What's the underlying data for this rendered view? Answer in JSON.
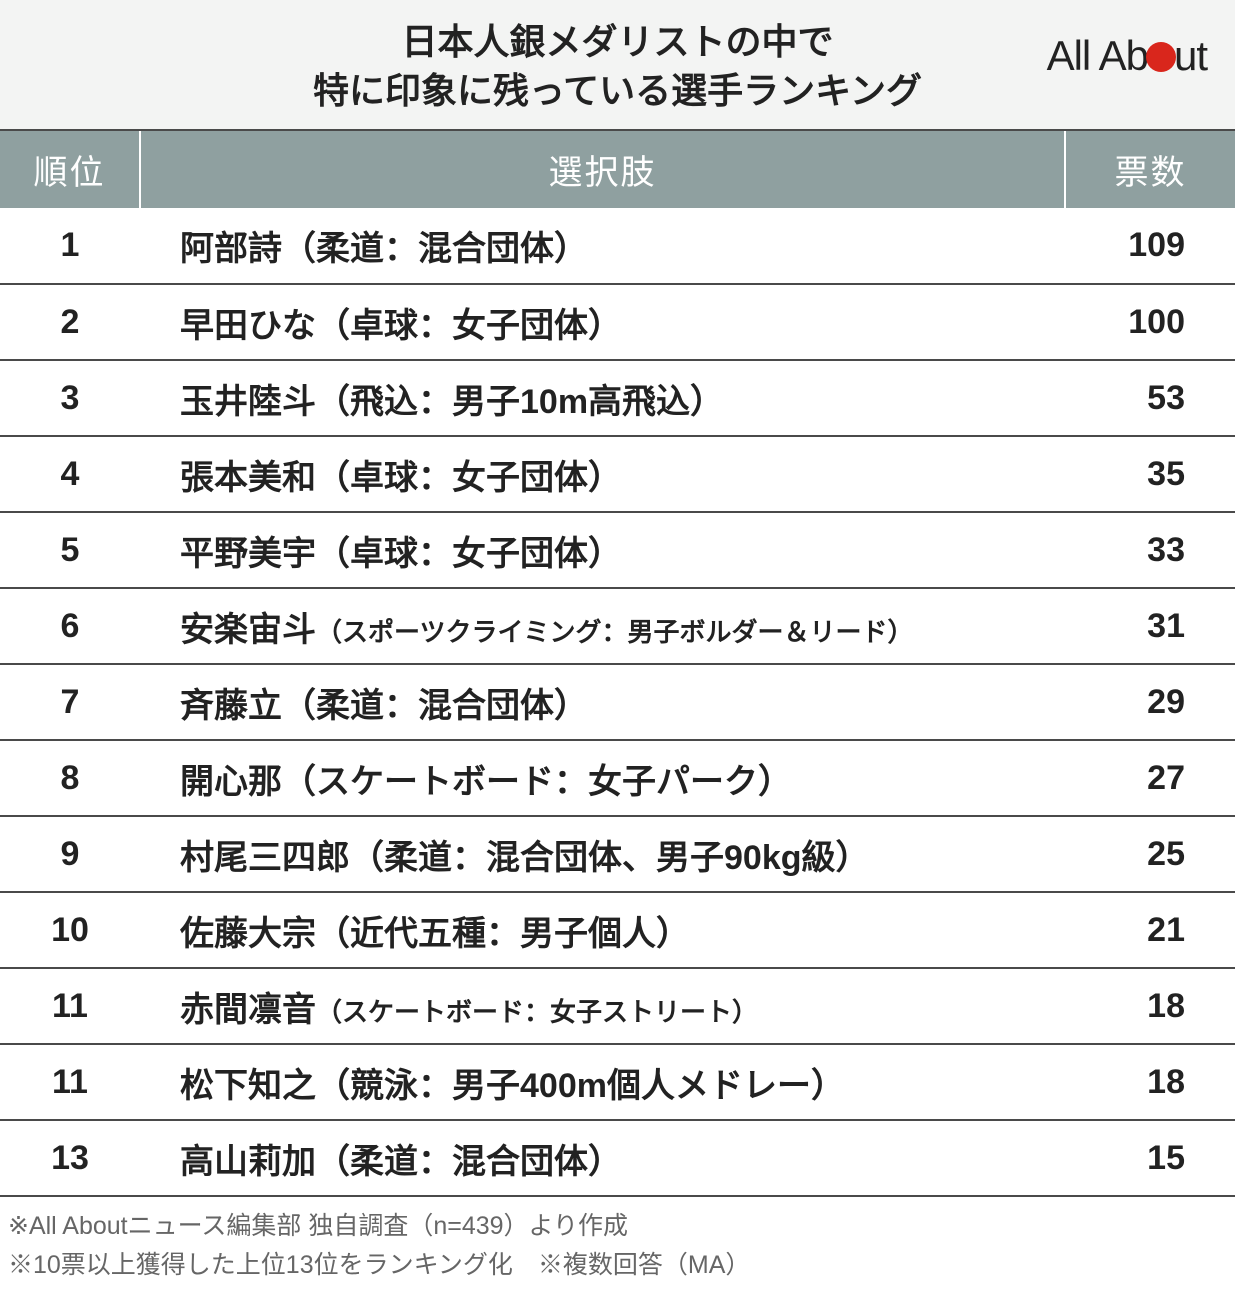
{
  "title_line1": "日本人銀メダリストの中で",
  "title_line2": "特に印象に残っている選手ランキング",
  "logo_part1": "All Ab",
  "logo_part3": "ut",
  "table": {
    "header_background": "#8fa0a0",
    "header_text_color": "#ffffff",
    "row_border_color": "#4a4a4a",
    "columns": {
      "rank": "順位",
      "choice": "選択肢",
      "votes": "票数"
    },
    "rows": [
      {
        "rank": "1",
        "name": "阿部詩",
        "detail": "（柔道：混合団体）",
        "small": false,
        "votes": "109"
      },
      {
        "rank": "2",
        "name": "早田ひな",
        "detail": "（卓球：女子団体）",
        "small": false,
        "votes": "100"
      },
      {
        "rank": "3",
        "name": "玉井陸斗",
        "detail": "（飛込：男子10m高飛込）",
        "small": false,
        "votes": "53"
      },
      {
        "rank": "4",
        "name": "張本美和",
        "detail": "（卓球：女子団体）",
        "small": false,
        "votes": "35"
      },
      {
        "rank": "5",
        "name": "平野美宇",
        "detail": "（卓球：女子団体）",
        "small": false,
        "votes": "33"
      },
      {
        "rank": "6",
        "name": "安楽宙斗",
        "detail": "（スポーツクライミング：男子ボルダー＆リード）",
        "small": true,
        "votes": "31"
      },
      {
        "rank": "7",
        "name": "斉藤立",
        "detail": "（柔道：混合団体）",
        "small": false,
        "votes": "29"
      },
      {
        "rank": "8",
        "name": "開心那",
        "detail": "（スケートボード：女子パーク）",
        "small": false,
        "votes": "27"
      },
      {
        "rank": "9",
        "name": "村尾三四郎",
        "detail": "（柔道：混合団体、男子90kg級）",
        "small": false,
        "votes": "25"
      },
      {
        "rank": "10",
        "name": "佐藤大宗",
        "detail": "（近代五種：男子個人）",
        "small": false,
        "votes": "21"
      },
      {
        "rank": "11",
        "name": "赤間凛音",
        "detail": "（スケートボード：女子ストリート）",
        "small": true,
        "votes": "18"
      },
      {
        "rank": "11",
        "name": "松下知之",
        "detail": "（競泳：男子400m個人メドレー）",
        "small": false,
        "votes": "18"
      },
      {
        "rank": "13",
        "name": "高山莉加",
        "detail": "（柔道：混合団体）",
        "small": false,
        "votes": "15"
      }
    ]
  },
  "footnote1": "※All Aboutニュース編集部 独自調査（n=439）より作成",
  "footnote2": "※10票以上獲得した上位13位をランキング化　※複数回答（MA）",
  "colors": {
    "title_bg": "#f3f4f3",
    "logo_dot": "#d9261c",
    "footnote_color": "#666666"
  }
}
